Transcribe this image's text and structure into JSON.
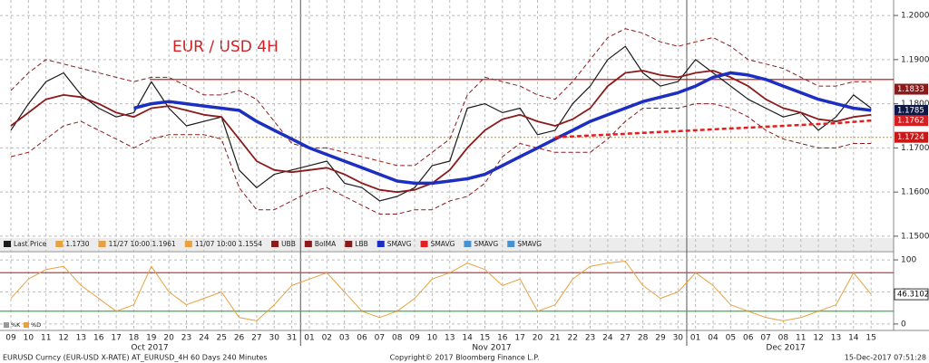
{
  "chart_data": [
    {
      "type": "line",
      "title": "EUR / USD 4H",
      "categories": [
        "09",
        "10",
        "11",
        "12",
        "13",
        "16",
        "17",
        "18",
        "19",
        "20",
        "23",
        "24",
        "25",
        "26",
        "27",
        "30",
        "31",
        "01",
        "02",
        "03",
        "06",
        "07",
        "08",
        "09",
        "10",
        "13",
        "14",
        "15",
        "16",
        "17",
        "20",
        "21",
        "22",
        "23",
        "24",
        "27",
        "28",
        "29",
        "30",
        "01",
        "04",
        "05",
        "06",
        "07",
        "08",
        "11",
        "12",
        "13",
        "14",
        "15"
      ],
      "months": [
        "Oct 2017",
        "Nov 2017",
        "Dec 2017"
      ],
      "ylim": [
        1.1465,
        1.2035
      ],
      "yticks": [
        {
          "value": 1.15,
          "label": "1.1500"
        },
        {
          "value": 1.16,
          "label": "1.1600"
        },
        {
          "value": 1.17,
          "label": "1.1700"
        },
        {
          "value": 1.18,
          "label": "1.1800"
        },
        {
          "value": 1.19,
          "label": "1.1900"
        },
        {
          "value": 1.2,
          "label": "1.2000"
        }
      ],
      "grid": true,
      "legend_extras": [
        "1.1730",
        "11/27 10:00 1.1961",
        "11/07 10:00 1.1554"
      ],
      "legend_more": [
        "SMAVG",
        "SMAVG"
      ],
      "hlines": [
        {
          "value": 1.1855,
          "color": "#c00000",
          "style": "solid"
        },
        {
          "value": 1.1724,
          "color": "#e0a000",
          "style": "dotted"
        }
      ],
      "price_labels": [
        {
          "value": 1.1833,
          "color": "#8b1a1a"
        },
        {
          "value": 1.1785,
          "color": "#101848"
        },
        {
          "value": 1.1762,
          "color": "#d42020"
        },
        {
          "value": 1.1724,
          "color": "#c81818"
        }
      ],
      "series": [
        {
          "name": "Last Price",
          "color": "#1a1a1a",
          "style": "solid",
          "width": 1.2,
          "values": [
            1.174,
            1.18,
            1.185,
            1.187,
            1.182,
            1.179,
            1.177,
            1.178,
            1.185,
            1.179,
            1.175,
            1.176,
            1.177,
            1.165,
            1.161,
            1.164,
            1.165,
            1.166,
            1.167,
            1.162,
            1.161,
            1.158,
            1.159,
            1.161,
            1.166,
            1.167,
            1.179,
            1.18,
            1.178,
            1.179,
            1.173,
            1.174,
            1.18,
            1.184,
            1.19,
            1.193,
            1.187,
            1.184,
            1.185,
            1.19,
            1.187,
            1.184,
            1.181,
            1.179,
            1.177,
            1.178,
            1.174,
            1.177,
            1.182,
            1.179
          ]
        },
        {
          "name": "UBB",
          "color": "#8b1a1a",
          "style": "dashed",
          "width": 1,
          "values": [
            1.183,
            1.187,
            1.19,
            1.189,
            1.188,
            1.187,
            1.186,
            1.185,
            1.186,
            1.186,
            1.184,
            1.182,
            1.182,
            1.183,
            1.181,
            1.176,
            1.171,
            1.17,
            1.17,
            1.169,
            1.168,
            1.167,
            1.166,
            1.166,
            1.169,
            1.172,
            1.182,
            1.186,
            1.185,
            1.184,
            1.182,
            1.181,
            1.185,
            1.19,
            1.195,
            1.197,
            1.196,
            1.194,
            1.193,
            1.194,
            1.195,
            1.193,
            1.19,
            1.189,
            1.188,
            1.186,
            1.184,
            1.184,
            1.185,
            1.185
          ]
        },
        {
          "name": "BolMA",
          "color": "#8b1a1a",
          "style": "solid",
          "width": 1.8,
          "values": [
            1.175,
            1.178,
            1.181,
            1.182,
            1.1815,
            1.18,
            1.178,
            1.177,
            1.179,
            1.1795,
            1.1785,
            1.1775,
            1.177,
            1.172,
            1.167,
            1.165,
            1.1645,
            1.165,
            1.1655,
            1.164,
            1.162,
            1.1605,
            1.16,
            1.1605,
            1.162,
            1.165,
            1.17,
            1.174,
            1.1765,
            1.1775,
            1.176,
            1.175,
            1.1765,
            1.179,
            1.184,
            1.187,
            1.1875,
            1.1865,
            1.186,
            1.187,
            1.1875,
            1.186,
            1.184,
            1.181,
            1.179,
            1.178,
            1.1765,
            1.176,
            1.177,
            1.1775
          ]
        },
        {
          "name": "LBB",
          "color": "#8b1a1a",
          "style": "dashed",
          "width": 1,
          "values": [
            1.168,
            1.169,
            1.172,
            1.175,
            1.176,
            1.174,
            1.172,
            1.17,
            1.172,
            1.173,
            1.173,
            1.173,
            1.172,
            1.161,
            1.156,
            1.156,
            1.158,
            1.16,
            1.161,
            1.159,
            1.157,
            1.155,
            1.155,
            1.156,
            1.156,
            1.158,
            1.159,
            1.162,
            1.168,
            1.171,
            1.17,
            1.169,
            1.169,
            1.169,
            1.172,
            1.176,
            1.179,
            1.179,
            1.179,
            1.18,
            1.18,
            1.179,
            1.177,
            1.174,
            1.172,
            1.171,
            1.17,
            1.17,
            1.171,
            1.171
          ]
        },
        {
          "name": "SMAVG",
          "color": "#1c2fc0",
          "style": "solid",
          "width": 3.5,
          "values": [
            null,
            null,
            null,
            null,
            null,
            null,
            null,
            1.179,
            1.18,
            1.1805,
            1.18,
            1.1795,
            1.179,
            1.1785,
            1.176,
            1.174,
            1.172,
            1.17,
            1.1685,
            1.167,
            1.1655,
            1.164,
            1.1625,
            1.162,
            1.162,
            1.1625,
            1.163,
            1.164,
            1.166,
            1.168,
            1.17,
            1.172,
            1.174,
            1.176,
            1.1775,
            1.179,
            1.1805,
            1.1815,
            1.1825,
            1.184,
            1.186,
            1.187,
            1.1865,
            1.1855,
            1.184,
            1.1825,
            1.181,
            1.18,
            1.179,
            1.1785
          ]
        },
        {
          "name": "SMAVG",
          "color": "#e02020",
          "style": "dashed",
          "width": 2.5,
          "values": [
            null,
            null,
            null,
            null,
            null,
            null,
            null,
            null,
            null,
            null,
            null,
            null,
            null,
            null,
            null,
            null,
            null,
            null,
            null,
            null,
            null,
            null,
            null,
            null,
            null,
            null,
            null,
            null,
            null,
            null,
            null,
            1.1724,
            1.1726,
            1.1728,
            1.173,
            1.1732,
            1.1734,
            1.1736,
            1.1738,
            1.174,
            1.1742,
            1.1744,
            1.1746,
            1.1748,
            1.175,
            1.1752,
            1.1754,
            1.1756,
            1.1759,
            1.1762
          ]
        }
      ]
    },
    {
      "type": "line",
      "ylim": [
        -10,
        110
      ],
      "yticks": [
        0,
        50,
        100
      ],
      "hlines": [
        {
          "value": 80,
          "color": "#c04040",
          "style": "solid"
        },
        {
          "value": 20,
          "color": "#40b040",
          "style": "solid"
        }
      ],
      "price_labels": [
        {
          "value": 46.3102,
          "color": "#ffffff"
        }
      ],
      "legend_names": [
        "%K",
        "%D"
      ],
      "series": [
        {
          "name": "%K",
          "color": "#e8a040",
          "style": "solid",
          "width": 1,
          "values": [
            40,
            70,
            85,
            90,
            60,
            40,
            20,
            30,
            90,
            50,
            30,
            40,
            50,
            10,
            5,
            30,
            60,
            70,
            80,
            50,
            20,
            10,
            20,
            40,
            70,
            80,
            95,
            85,
            60,
            70,
            20,
            30,
            70,
            90,
            95,
            98,
            60,
            40,
            50,
            80,
            60,
            30,
            20,
            10,
            5,
            10,
            20,
            30,
            80,
            46.3102
          ]
        }
      ]
    }
  ],
  "footer": {
    "left": "EURUSD Curncy (EUR-USD X-RATE) AT_EURUSD_4H 60 Days 240 Minutes",
    "center": "Copyright© 2017 Bloomberg Finance L.P.",
    "right": "15-Dec-2017 07:51:28"
  }
}
